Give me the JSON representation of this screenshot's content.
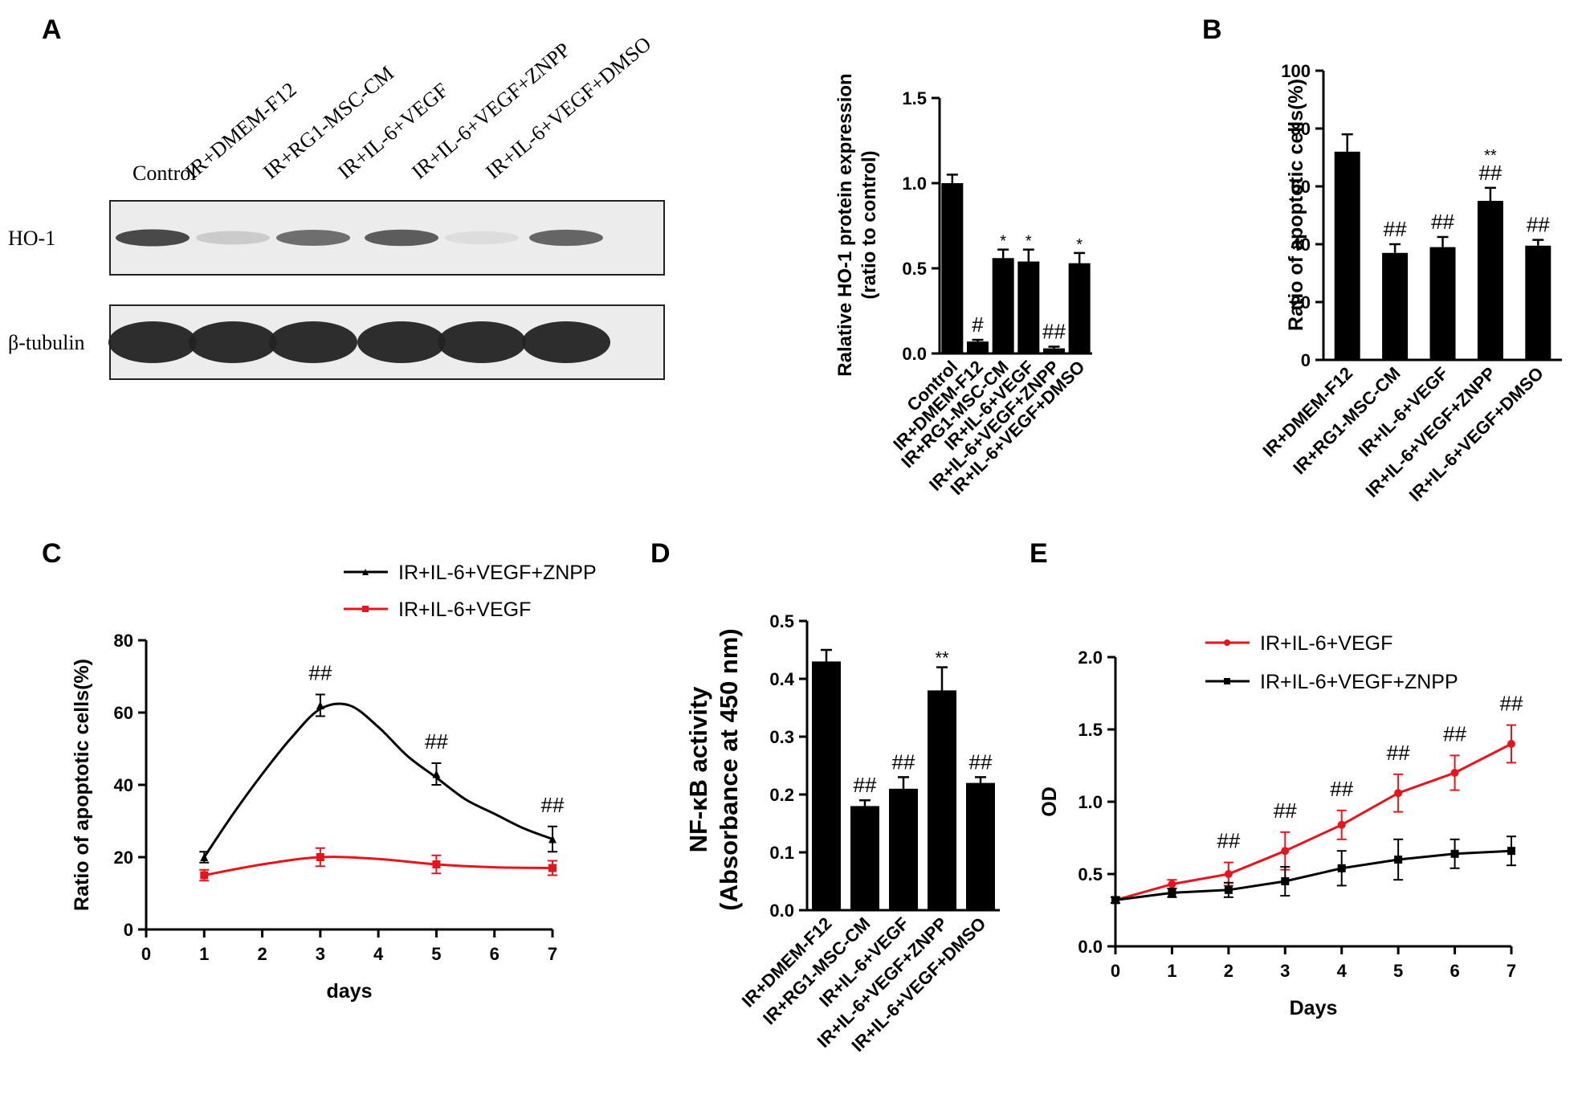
{
  "panels": {
    "A": {
      "letter": "A",
      "blot": {
        "lanes": [
          "Control",
          "IR+DMEM-F12",
          "IR+RG1-MSC-CM",
          "IR+IL-6+VEGF",
          "IR+IL-6+VEGF+ZNPP",
          "IR+IL-6+VEGF+DMSO"
        ],
        "rows": [
          {
            "label": "HO-1",
            "intensity": [
              0.85,
              0.15,
              0.65,
              0.75,
              0.05,
              0.7
            ]
          },
          {
            "label": "β-tubulin",
            "intensity": [
              1,
              1,
              1,
              1,
              1,
              1
            ]
          }
        ]
      }
    },
    "B": {
      "letter": "B"
    },
    "C": {
      "letter": "C"
    },
    "D": {
      "letter": "D"
    },
    "E": {
      "letter": "E"
    }
  },
  "chart_data": [
    {
      "id": "A-bar",
      "type": "bar",
      "ylabel": "Ralative HO-1 protein expression\n(ratio to control)",
      "categories": [
        "Control",
        "IR+DMEM-F12",
        "IR+RG1-MSC-CM",
        "IR+IL-6+VEGF",
        "IR+IL-6+VEGF+ZNPP",
        "IR+IL-6+VEGF+DMSO"
      ],
      "values": [
        1.0,
        0.07,
        0.56,
        0.54,
        0.03,
        0.53
      ],
      "errors": [
        0.05,
        0.01,
        0.05,
        0.07,
        0.01,
        0.06
      ],
      "annotations": [
        "",
        "#",
        "*",
        "*",
        "##",
        "*"
      ],
      "ylim": [
        0,
        1.5
      ],
      "yticks": [
        "0.0",
        "0.5",
        "1.0",
        "1.5"
      ]
    },
    {
      "id": "B",
      "type": "bar",
      "ylabel": "Ratio of apoptotic cells(%)",
      "categories": [
        "IR+DMEM-F12",
        "IR+RG1-MSC-CM",
        "IR+IL-6+VEGF",
        "IR+IL-6+VEGF+ZNPP",
        "IR+IL-6+VEGF+DMSO"
      ],
      "values": [
        72,
        37,
        39,
        55,
        39.5
      ],
      "errors": [
        6,
        3,
        3.5,
        4.5,
        2
      ],
      "annotations": [
        "",
        "##",
        "##",
        "**\n##",
        "##"
      ],
      "ylim": [
        0,
        100
      ],
      "yticks": [
        "0",
        "20",
        "40",
        "60",
        "80",
        "100"
      ]
    },
    {
      "id": "C",
      "type": "line",
      "xlabel": "days",
      "ylabel": "Ratio of apoptotic cells(%)",
      "xlim": [
        0,
        7
      ],
      "ylim": [
        0,
        80
      ],
      "xticks": [
        "0",
        "1",
        "2",
        "3",
        "4",
        "5",
        "6",
        "7"
      ],
      "yticks": [
        "0",
        "20",
        "40",
        "60",
        "80"
      ],
      "legend_position": "top-right",
      "series": [
        {
          "name": "IR+IL-6+VEGF+ZNPP",
          "color": "#000000",
          "marker": "triangle",
          "x": [
            1,
            3,
            5,
            7
          ],
          "y": [
            20,
            62,
            43,
            25
          ],
          "errors": [
            1.5,
            3,
            3,
            3.5
          ],
          "curve": [
            [
              1,
              20
            ],
            [
              1.5,
              32
            ],
            [
              2,
              43
            ],
            [
              2.5,
              53
            ],
            [
              3,
              61
            ],
            [
              3.5,
              62
            ],
            [
              4,
              56
            ],
            [
              4.5,
              48
            ],
            [
              5,
              42
            ],
            [
              5.5,
              36
            ],
            [
              6,
              32
            ],
            [
              6.5,
              28
            ],
            [
              7,
              25
            ]
          ]
        },
        {
          "name": "IR+IL-6+VEGF",
          "color": "#e8141b",
          "marker": "square",
          "x": [
            1,
            3,
            5,
            7
          ],
          "y": [
            15,
            20,
            18,
            17
          ],
          "errors": [
            1.5,
            2.5,
            2.5,
            2
          ],
          "curve": [
            [
              1,
              15
            ],
            [
              2,
              18
            ],
            [
              3,
              20
            ],
            [
              4,
              19.5
            ],
            [
              5,
              18
            ],
            [
              6,
              17.2
            ],
            [
              7,
              17
            ]
          ]
        }
      ],
      "annotations": [
        {
          "x": 3,
          "text": "##"
        },
        {
          "x": 5,
          "text": "##"
        },
        {
          "x": 7,
          "text": "##"
        }
      ]
    },
    {
      "id": "D",
      "type": "bar",
      "ylabel_line1": "NF-κB activity",
      "ylabel_line2": "(Absorbance at 450 nm)",
      "categories": [
        "IR+DMEM-F12",
        "IR+RG1-MSC-CM",
        "IR+IL-6+VEGF",
        "IR+IL-6+VEGF+ZNPP",
        "IR+IL-6+VEGF+DMSO"
      ],
      "values": [
        0.43,
        0.18,
        0.21,
        0.38,
        0.22
      ],
      "errors": [
        0.02,
        0.01,
        0.02,
        0.04,
        0.01
      ],
      "annotations": [
        "",
        "##",
        "##",
        "**",
        "##"
      ],
      "ylim": [
        0,
        0.5
      ],
      "yticks": [
        "0.0",
        "0.1",
        "0.2",
        "0.3",
        "0.4",
        "0.5"
      ]
    },
    {
      "id": "E",
      "type": "line",
      "xlabel": "Days",
      "ylabel": "OD",
      "xlim": [
        0,
        7
      ],
      "ylim": [
        0,
        2.0
      ],
      "xticks": [
        "0",
        "1",
        "2",
        "3",
        "4",
        "5",
        "6",
        "7"
      ],
      "yticks": [
        "0.0",
        "0.5",
        "1.0",
        "1.5",
        "2.0"
      ],
      "legend_position": "top-left",
      "series": [
        {
          "name": "IR+IL-6+VEGF",
          "color": "#e8141b",
          "marker": "circle",
          "x": [
            0,
            1,
            2,
            3,
            4,
            5,
            6,
            7
          ],
          "y": [
            0.32,
            0.43,
            0.5,
            0.66,
            0.84,
            1.06,
            1.2,
            1.4
          ],
          "errors": [
            0.02,
            0.03,
            0.08,
            0.13,
            0.1,
            0.13,
            0.12,
            0.13
          ]
        },
        {
          "name": "IR+IL-6+VEGF+ZNPP",
          "color": "#000000",
          "marker": "square",
          "x": [
            0,
            1,
            2,
            3,
            4,
            5,
            6,
            7
          ],
          "y": [
            0.32,
            0.37,
            0.39,
            0.45,
            0.54,
            0.6,
            0.64,
            0.66
          ],
          "errors": [
            0.02,
            0.03,
            0.05,
            0.1,
            0.12,
            0.14,
            0.1,
            0.1
          ]
        }
      ],
      "annotations": [
        {
          "x": 2,
          "text": "##"
        },
        {
          "x": 3,
          "text": "##"
        },
        {
          "x": 4,
          "text": "##"
        },
        {
          "x": 5,
          "text": "##"
        },
        {
          "x": 6,
          "text": "##"
        },
        {
          "x": 7,
          "text": "##"
        }
      ]
    }
  ]
}
